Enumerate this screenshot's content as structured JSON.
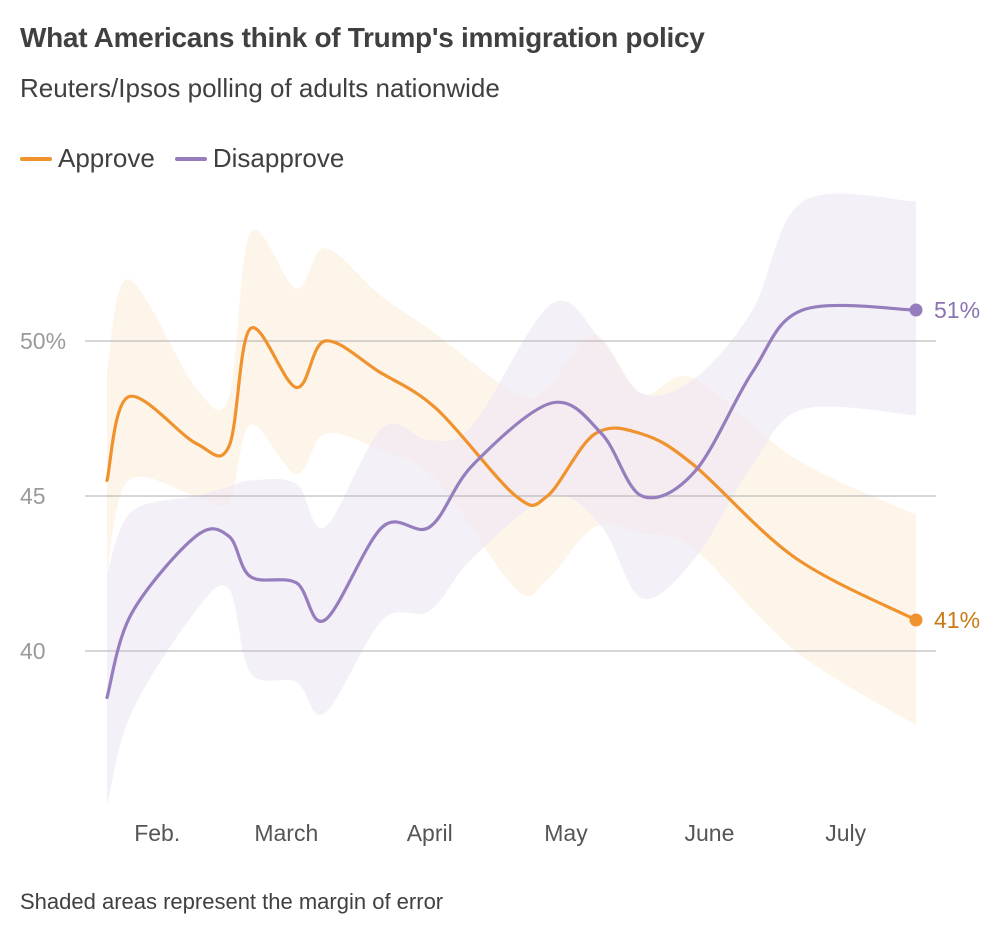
{
  "chart_data": {
    "type": "line",
    "title": "What Americans think of Trump's immigration policy",
    "subtitle": "Reuters/Ipsos polling of adults nationwide",
    "footnote": "Shaded areas represent the margin of error",
    "ylim": [
      35,
      55
    ],
    "xlim": [
      0,
      5.5
    ],
    "y_ticks": [
      {
        "value": 50,
        "label": "50%"
      },
      {
        "value": 45,
        "label": "45"
      },
      {
        "value": 40,
        "label": "40"
      }
    ],
    "x_ticks": [
      {
        "value": 0.35,
        "label": "Feb."
      },
      {
        "value": 1.25,
        "label": "March"
      },
      {
        "value": 2.25,
        "label": "April"
      },
      {
        "value": 3.2,
        "label": "May"
      },
      {
        "value": 4.2,
        "label": "June"
      },
      {
        "value": 5.15,
        "label": "July"
      }
    ],
    "grid": true,
    "legend_position": "top-left",
    "series": [
      {
        "name": "Approve",
        "color": "#f0922d",
        "band_color": "#fdefdc",
        "end_label": "41%",
        "end_label_color": "#c97a16",
        "x": [
          0.0,
          0.15,
          0.62,
          0.85,
          1.0,
          1.32,
          1.52,
          1.9,
          2.3,
          2.85,
          3.07,
          3.4,
          3.73,
          4.09,
          4.8,
          5.64
        ],
        "y": [
          45.5,
          48.2,
          46.7,
          46.6,
          50.4,
          48.5,
          50.0,
          49.0,
          47.8,
          45.0,
          45.0,
          47.0,
          47.0,
          46.0,
          43.0,
          41.0
        ],
        "lower": [
          42.5,
          45.5,
          45.0,
          44.8,
          47.3,
          45.7,
          47.0,
          46.5,
          45.5,
          42.0,
          42.3,
          44.0,
          43.8,
          43.3,
          40.0,
          37.6
        ],
        "upper": [
          49.0,
          52.0,
          48.5,
          48.2,
          53.5,
          51.7,
          53.0,
          51.5,
          50.2,
          48.3,
          48.5,
          50.2,
          48.3,
          48.8,
          46.2,
          44.4
        ]
      },
      {
        "name": "Disapprove",
        "color": "#957dbe",
        "band_color": "#ece6f3",
        "end_label": "51%",
        "end_label_color": "#8a72b4",
        "x": [
          0.0,
          0.17,
          0.62,
          0.85,
          1.0,
          1.32,
          1.52,
          1.92,
          2.25,
          2.55,
          3.1,
          3.45,
          3.73,
          4.1,
          4.5,
          4.85,
          5.64
        ],
        "y": [
          38.5,
          41.2,
          43.7,
          43.7,
          42.4,
          42.2,
          41.0,
          44.0,
          44.0,
          46.0,
          48.0,
          47.0,
          45.0,
          45.8,
          49.0,
          51.0,
          51.0
        ],
        "lower": [
          35.0,
          38.0,
          41.3,
          42.0,
          39.3,
          39.0,
          38.0,
          41.0,
          41.3,
          43.0,
          45.0,
          44.0,
          41.7,
          43.0,
          46.0,
          47.8,
          47.6
        ],
        "upper": [
          42.5,
          44.5,
          45.0,
          45.3,
          45.5,
          45.4,
          44.0,
          47.2,
          46.8,
          47.3,
          51.2,
          50.0,
          48.3,
          48.8,
          51.0,
          54.5,
          54.5
        ]
      }
    ]
  }
}
